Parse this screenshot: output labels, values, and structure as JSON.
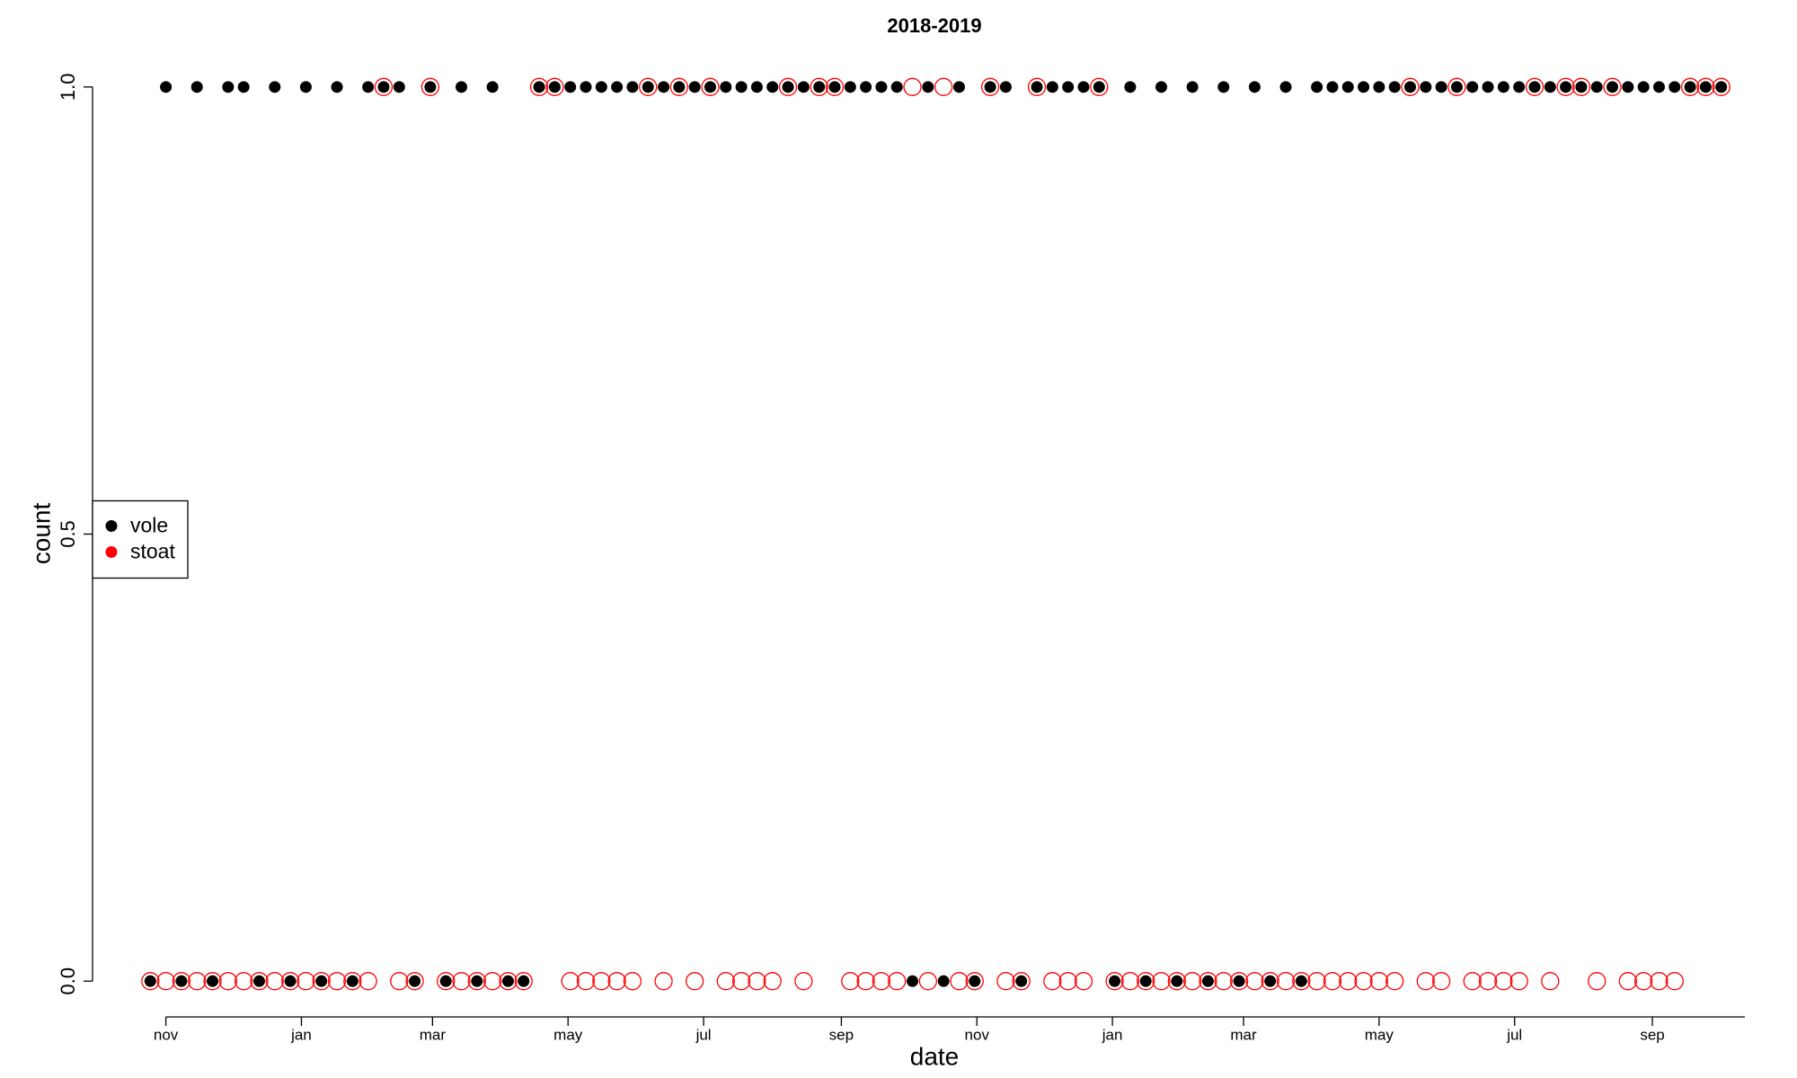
{
  "chart_data": {
    "type": "scatter",
    "title": "2018-2019",
    "x_label": "date",
    "y_label": "count",
    "x": [
      -7,
      0,
      7,
      14,
      21,
      28,
      35,
      42,
      49,
      56,
      63,
      70,
      77,
      84,
      91,
      98,
      105,
      112,
      119,
      126,
      133,
      140,
      147,
      154,
      161,
      168,
      175,
      182,
      189,
      196,
      203,
      210,
      217,
      224,
      231,
      238,
      245,
      252,
      259,
      266,
      273,
      280,
      287,
      294,
      301,
      308,
      315,
      322,
      329,
      336,
      343,
      350,
      357,
      364,
      371,
      378,
      385,
      392,
      399,
      406,
      413,
      420,
      427,
      434,
      441,
      448,
      455,
      462,
      469,
      476,
      483,
      490,
      497,
      504,
      511,
      518,
      525,
      532,
      539,
      546,
      553,
      560,
      567,
      574,
      581,
      588,
      595,
      602,
      609,
      616,
      623,
      630,
      637,
      644,
      651,
      658,
      665,
      672,
      679,
      686,
      693,
      700
    ],
    "series": [
      {
        "name": "vole",
        "color": "#000000",
        "marker": "filled",
        "values": [
          0,
          1,
          0,
          1,
          0,
          1,
          1,
          0,
          1,
          0,
          1,
          0,
          1,
          0,
          1,
          1,
          1,
          0,
          1,
          0,
          1,
          0,
          1,
          0,
          0,
          1,
          1,
          1,
          1,
          1,
          1,
          1,
          1,
          1,
          1,
          1,
          1,
          1,
          1,
          1,
          1,
          1,
          1,
          1,
          1,
          1,
          1,
          1,
          1,
          0,
          1,
          0,
          1,
          0,
          1,
          1,
          0,
          1,
          1,
          1,
          1,
          1,
          0,
          1,
          0,
          1,
          0,
          1,
          0,
          1,
          0,
          1,
          0,
          1,
          0,
          1,
          1,
          1,
          1,
          1,
          1,
          1,
          1,
          1,
          1,
          1,
          1,
          1,
          1,
          1,
          1,
          1,
          1,
          1,
          1,
          1,
          1,
          1,
          1,
          1,
          1,
          1
        ]
      },
      {
        "name": "stoat",
        "color": "#ff0000",
        "marker": "open",
        "values": [
          0,
          0,
          0,
          0,
          0,
          0,
          0,
          0,
          0,
          0,
          0,
          0,
          0,
          0,
          0,
          1,
          0,
          0,
          1,
          0,
          0,
          0,
          0,
          0,
          0,
          1,
          1,
          0,
          0,
          0,
          0,
          0,
          1,
          0,
          1,
          0,
          1,
          0,
          0,
          0,
          0,
          1,
          0,
          1,
          1,
          0,
          0,
          0,
          0,
          1,
          0,
          1,
          0,
          0,
          1,
          0,
          0,
          1,
          0,
          0,
          0,
          1,
          0,
          0,
          0,
          0,
          0,
          0,
          0,
          0,
          0,
          0,
          0,
          0,
          0,
          0,
          0,
          0,
          0,
          0,
          0,
          1,
          0,
          0,
          1,
          0,
          0,
          0,
          0,
          1,
          0,
          1,
          1,
          0,
          1,
          0,
          0,
          0,
          0,
          1,
          1,
          1
        ]
      }
    ],
    "xlim": [
      -33,
      726
    ],
    "xticks": [
      {
        "value": 0,
        "label": "nov"
      },
      {
        "value": 61,
        "label": "jan"
      },
      {
        "value": 120,
        "label": "mar"
      },
      {
        "value": 181,
        "label": "may"
      },
      {
        "value": 242,
        "label": "jul"
      },
      {
        "value": 304,
        "label": "sep"
      },
      {
        "value": 365,
        "label": "nov"
      },
      {
        "value": 426,
        "label": "jan"
      },
      {
        "value": 485,
        "label": "mar"
      },
      {
        "value": 546,
        "label": "may"
      },
      {
        "value": 607,
        "label": "jul"
      },
      {
        "value": 669,
        "label": "sep"
      }
    ],
    "ylim": [
      -0.04,
      1.04
    ],
    "yticks": [
      {
        "value": 0,
        "label": "0.0"
      },
      {
        "value": 0.5,
        "label": "0.5"
      },
      {
        "value": 1,
        "label": "1.0"
      }
    ],
    "grid": false,
    "legend": "left"
  }
}
